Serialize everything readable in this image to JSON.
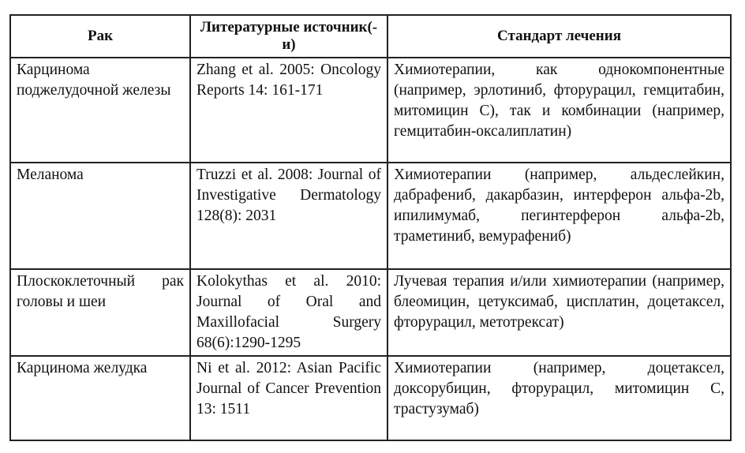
{
  "table": {
    "header": [
      "Рак",
      "Литературные источник(-и)",
      "Стандарт лечения"
    ],
    "rows": [
      [
        "Карцинома поджелудочной железы",
        "Zhang et al. 2005: Oncology Reports 14: 161-171",
        "Химиотерапии, как однокомпонентные (например, эрлотиниб, фторурацил, гемцитабин, митомицин С), так и комбинации (например, гемцитабин-оксалиплатин)"
      ],
      [
        "Меланома",
        "Truzzi et al. 2008: Journal of Investigative Dermatology 128(8): 2031",
        "Химиотерапии (например, альдеслейкин, дабрафениб, дакарбазин, интерферон альфа-2b, ипилимумаб, пегинтерферон альфа-2b, траметиниб, вемурафениб)"
      ],
      [
        "Плоскоклеточный рак головы и шеи",
        "Kolokythas et al. 2010: Journal of Oral and Maxillofacial Surgery 68(6):1290-1295",
        "Лучевая терапия и/или химиотерапии (например, блеомицин, цетуксимаб, цисплатин, доцетаксел, фторурацил, метотрексат)"
      ],
      [
        "Карцинома желудка",
        "Ni et al. 2012: Asian Pacific Journal of Cancer Prevention 13: 1511",
        "Химиотерапии (например, доцетаксел, доксорубицин, фторурацил, митомицин С, трастузумаб)"
      ]
    ]
  }
}
